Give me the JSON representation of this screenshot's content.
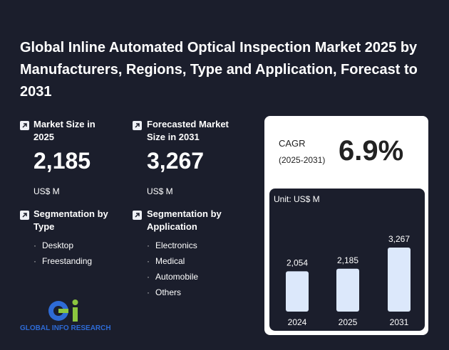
{
  "header": {
    "title": "Global Inline Automated Optical Inspection Market 2025 by Manufacturers, Regions, Type and Application, Forecast to 2031"
  },
  "market_size": {
    "label": "Market Size in 2025",
    "value": "2,185",
    "unit": "US$ M"
  },
  "forecast": {
    "label": "Forecasted Market Size in 2031",
    "value": "3,267",
    "unit": "US$ M"
  },
  "segment_type": {
    "label": "Segmentation by Type",
    "items": [
      "Desktop",
      "Freestanding"
    ]
  },
  "segment_application": {
    "label": "Segmentation by Application",
    "items": [
      "Electronics",
      "Medical",
      "Automobile",
      "Others"
    ]
  },
  "cagr": {
    "label": "CAGR",
    "period": "(2025-2031)",
    "value": "6.9%"
  },
  "chart_data": {
    "type": "bar",
    "unit": "Unit: US$ M",
    "categories": [
      "2024",
      "2025",
      "2031"
    ],
    "values": [
      2054,
      2185,
      3267
    ],
    "value_labels": [
      "2,054",
      "2,185",
      "3,267"
    ],
    "color": "#dce8fb"
  },
  "logo": {
    "text": "GLOBAL INFO RESEARCH"
  }
}
